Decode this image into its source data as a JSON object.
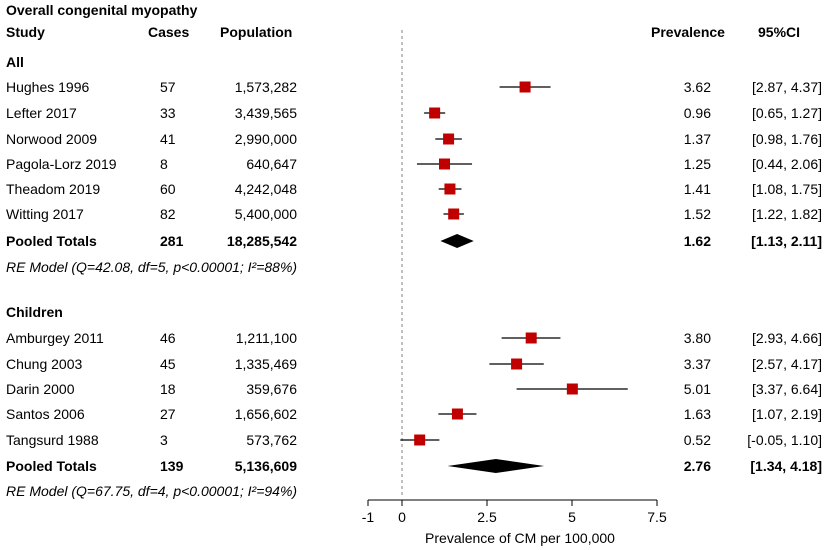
{
  "header": {
    "title": "Overall congenital myopathy",
    "col_study": "Study",
    "col_cases": "Cases",
    "col_population": "Population",
    "col_prevalence": "Prevalence",
    "col_ci": "95%CI"
  },
  "groups": [
    {
      "name": "All",
      "rows": [
        {
          "study": "Hughes 1996",
          "cases": "57",
          "population": "1,573,282",
          "prevalence": "3.62",
          "ci": "[2.87, 4.37]"
        },
        {
          "study": "Lefter 2017",
          "cases": "33",
          "population": "3,439,565",
          "prevalence": "0.96",
          "ci": "[0.65, 1.27]"
        },
        {
          "study": "Norwood 2009",
          "cases": "41",
          "population": "2,990,000",
          "prevalence": "1.37",
          "ci": "[0.98, 1.76]"
        },
        {
          "study": "Pagola-Lorz 2019",
          "cases": "8",
          "population": "640,647",
          "prevalence": "1.25",
          "ci": "[0.44, 2.06]"
        },
        {
          "study": "Theadom 2019",
          "cases": "60",
          "population": "4,242,048",
          "prevalence": "1.41",
          "ci": "[1.08, 1.75]"
        },
        {
          "study": "Witting 2017",
          "cases": "82",
          "population": "5,400,000",
          "prevalence": "1.52",
          "ci": "[1.22, 1.82]"
        }
      ],
      "pooled": {
        "label": "Pooled Totals",
        "cases": "281",
        "population": "18,285,542",
        "prevalence": "1.62",
        "ci": "[1.13, 2.11]"
      },
      "model_text": "RE Model (Q=42.08, df=5, p<0.00001; I²=88%)"
    },
    {
      "name": "Children",
      "rows": [
        {
          "study": "Amburgey 2011",
          "cases": "46",
          "population": "1,211,100",
          "prevalence": "3.80",
          "ci": "[2.93, 4.66]"
        },
        {
          "study": "Chung 2003",
          "cases": "45",
          "population": "1,335,469",
          "prevalence": "3.37",
          "ci": "[2.57, 4.17]"
        },
        {
          "study": "Darin 2000",
          "cases": "18",
          "population": "359,676",
          "prevalence": "5.01",
          "ci": "[3.37, 6.64]"
        },
        {
          "study": "Santos 2006",
          "cases": "27",
          "population": "1,656,602",
          "prevalence": "1.63",
          "ci": "[1.07, 2.19]"
        },
        {
          "study": "Tangsurd 1988",
          "cases": "3",
          "population": "573,762",
          "prevalence": "0.52",
          "ci": "[-0.05, 1.10]"
        }
      ],
      "pooled": {
        "label": "Pooled Totals",
        "cases": "139",
        "population": "5,136,609",
        "prevalence": "2.76",
        "ci": "[1.34, 4.18]"
      },
      "model_text": "RE Model (Q=67.75, df=4, p<0.00001; I²=94%)"
    }
  ],
  "colors": {
    "marker": "#c00000",
    "line": "#000000",
    "reference": "#808080"
  },
  "chart_data": {
    "type": "forest",
    "title": "Overall congenital myopathy",
    "xlabel": "Prevalence of CM per 100,000",
    "xlim": [
      -1,
      7.5
    ],
    "xticks": [
      -1,
      0,
      2.5,
      5,
      7.5
    ],
    "xtick_labels": [
      "-1",
      "0",
      "2.5",
      "5",
      "7.5"
    ],
    "reference_line": 0,
    "series": [
      {
        "name": "All",
        "points": [
          {
            "label": "Hughes 1996",
            "est": 3.62,
            "lo": 2.87,
            "hi": 4.37
          },
          {
            "label": "Lefter 2017",
            "est": 0.96,
            "lo": 0.65,
            "hi": 1.27
          },
          {
            "label": "Norwood 2009",
            "est": 1.37,
            "lo": 0.98,
            "hi": 1.76
          },
          {
            "label": "Pagola-Lorz 2019",
            "est": 1.25,
            "lo": 0.44,
            "hi": 2.06
          },
          {
            "label": "Theadom 2019",
            "est": 1.41,
            "lo": 1.08,
            "hi": 1.75
          },
          {
            "label": "Witting 2017",
            "est": 1.52,
            "lo": 1.22,
            "hi": 1.82
          }
        ],
        "pooled": {
          "est": 1.62,
          "lo": 1.13,
          "hi": 2.11
        }
      },
      {
        "name": "Children",
        "points": [
          {
            "label": "Amburgey 2011",
            "est": 3.8,
            "lo": 2.93,
            "hi": 4.66
          },
          {
            "label": "Chung 2003",
            "est": 3.37,
            "lo": 2.57,
            "hi": 4.17
          },
          {
            "label": "Darin 2000",
            "est": 5.01,
            "lo": 3.37,
            "hi": 6.64
          },
          {
            "label": "Santos 2006",
            "est": 1.63,
            "lo": 1.07,
            "hi": 2.19
          },
          {
            "label": "Tangsurd 1988",
            "est": 0.52,
            "lo": -0.05,
            "hi": 1.1
          }
        ],
        "pooled": {
          "est": 2.76,
          "lo": 1.34,
          "hi": 4.18
        }
      }
    ]
  }
}
